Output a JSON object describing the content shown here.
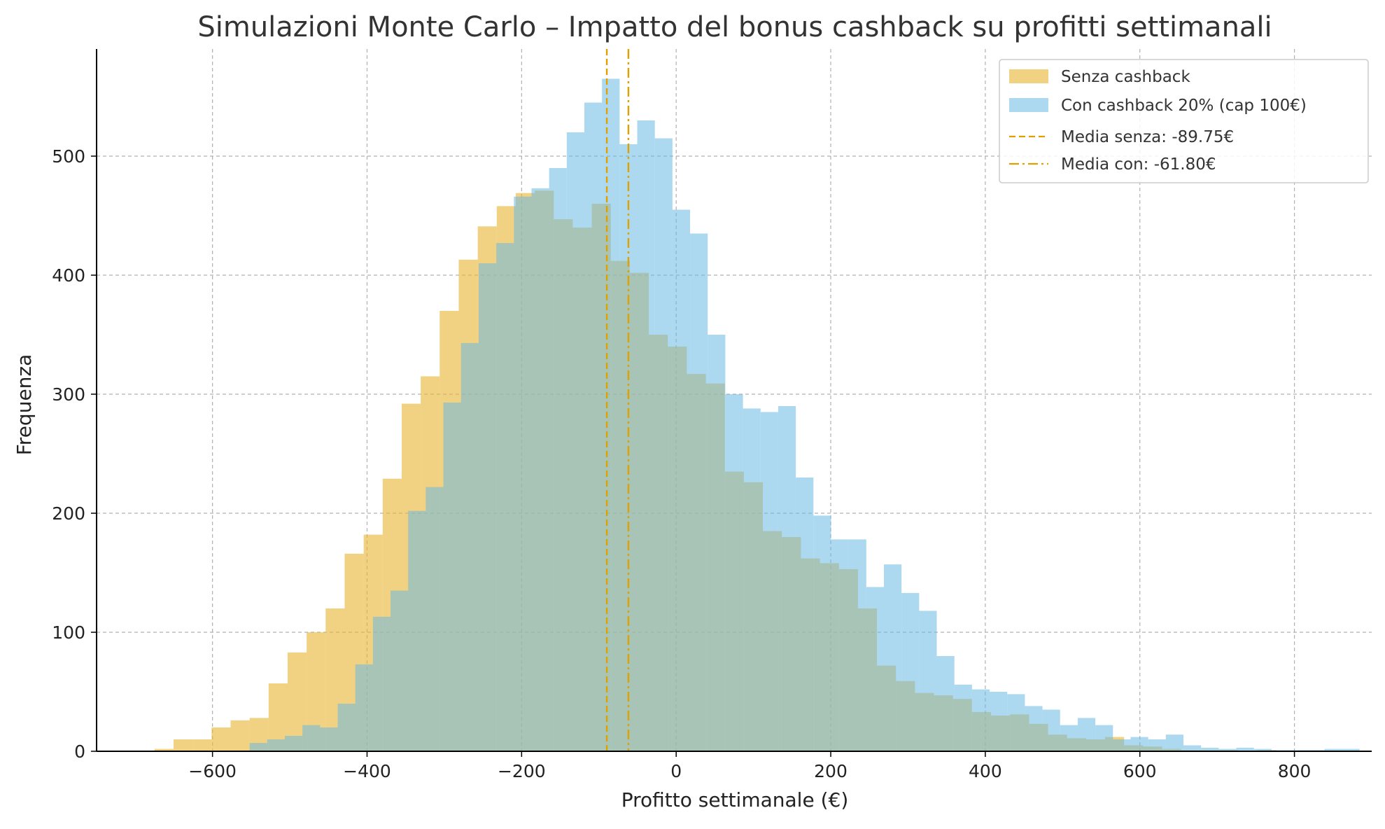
{
  "chart_data": {
    "type": "histogram",
    "title": "Simulazioni Monte Carlo – Impatto del bonus cashback su profitti settimanali",
    "xlabel": "Profitto settimanale (€)",
    "ylabel": "Frequenza",
    "xlim": [
      -750,
      900
    ],
    "ylim": [
      0,
      590
    ],
    "xticks": [
      -600,
      -400,
      -200,
      0,
      200,
      400,
      600,
      800
    ],
    "yticks": [
      0,
      100,
      200,
      300,
      400,
      500
    ],
    "grid": true,
    "legend_position": "top-right",
    "series": [
      {
        "name": "Senza cashback",
        "color": "#e8b436",
        "opacity": 0.62,
        "bin_start": -675,
        "bin_width": 24.6,
        "values": [
          2,
          10,
          10,
          20,
          26,
          28,
          57,
          83,
          100,
          120,
          166,
          182,
          229,
          292,
          315,
          370,
          413,
          441,
          458,
          469,
          471,
          447,
          440,
          460,
          412,
          402,
          350,
          340,
          317,
          309,
          235,
          226,
          185,
          180,
          162,
          158,
          153,
          120,
          72,
          59,
          49,
          47,
          44,
          33,
          30,
          31,
          23,
          14,
          11,
          10,
          12,
          5,
          4,
          2,
          1,
          1,
          1,
          0,
          1
        ]
      },
      {
        "name": "Con cashback 20% (cap 100€)",
        "color": "#69b9e4",
        "opacity": 0.55,
        "bin_start": -552,
        "bin_width": 22.8,
        "values": [
          7,
          10,
          13,
          22,
          20,
          40,
          73,
          113,
          135,
          202,
          222,
          293,
          343,
          410,
          427,
          466,
          473,
          490,
          520,
          545,
          565,
          510,
          530,
          515,
          455,
          435,
          350,
          300,
          288,
          285,
          290,
          230,
          198,
          178,
          178,
          138,
          157,
          133,
          118,
          80,
          56,
          52,
          50,
          48,
          38,
          35,
          22,
          28,
          22,
          10,
          12,
          10,
          14,
          5,
          3,
          2,
          3,
          2,
          1,
          1,
          1,
          2,
          2
        ]
      }
    ],
    "vlines": [
      {
        "name": "Media senza: -89.75€",
        "x": -89.75,
        "color": "#e0a000",
        "style": "dashed"
      },
      {
        "name": "Media con: -61.80€",
        "x": -61.8,
        "color": "#e0a000",
        "style": "dashdot"
      }
    ]
  }
}
